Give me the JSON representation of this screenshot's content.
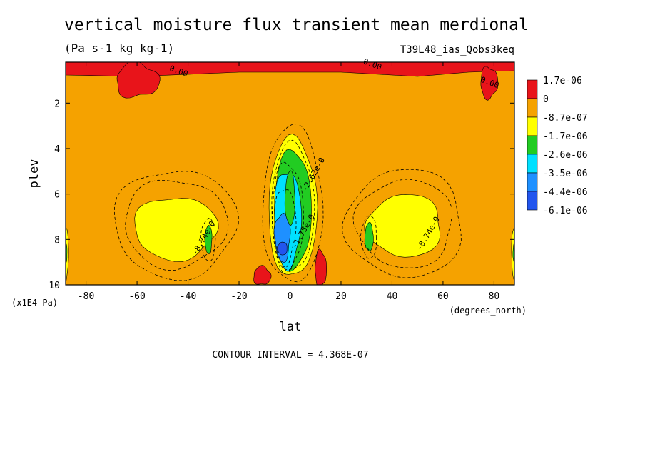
{
  "chart_data": {
    "type": "heatmap",
    "title": "vertical moisture flux transient mean merdional",
    "units": "(Pa s-1 kg kg-1)",
    "dataset": "T39L48_ias_Qobs3keq",
    "xlabel": "lat",
    "xunits": "(degrees_north)",
    "ylabel": "plev",
    "yunits": "(x1E4 Pa)",
    "xlim": [
      -88,
      88
    ],
    "ylim": [
      10,
      0.2
    ],
    "xticks": [
      "-80",
      "-60",
      "-40",
      "-20",
      "0",
      "20",
      "40",
      "60",
      "80"
    ],
    "yticks": [
      "2",
      "4",
      "6",
      "8",
      "10"
    ],
    "contour_interval_label": "CONTOUR INTERVAL = 4.368E-07",
    "legend": {
      "placement": "right",
      "levels": [
        "1.7e-06",
        "0",
        "-8.7e-07",
        "-1.7e-06",
        "-2.6e-06",
        "-3.5e-06",
        "-4.4e-06",
        "-6.1e-06"
      ],
      "colors": [
        "#e8141a",
        "#f5a200",
        "#ffff00",
        "#22cc22",
        "#00e0ff",
        "#1e90ff",
        "#2255ee"
      ]
    },
    "contour_labels": [
      {
        "text": "0.00",
        "x": -44,
        "y": 0.7
      },
      {
        "text": "0.00",
        "x": 32,
        "y": 0.4
      },
      {
        "text": "0.00",
        "x": 78,
        "y": 1.2
      },
      {
        "text": "-8.74e-0",
        "x": -33,
        "y": 8.0
      },
      {
        "text": "-8.74e-0",
        "x": 55,
        "y": 7.8
      },
      {
        "text": "-1.75e-0",
        "x": 6,
        "y": 7.7
      },
      {
        "text": "-2.62e-0",
        "x": 10,
        "y": 5.2
      }
    ]
  }
}
